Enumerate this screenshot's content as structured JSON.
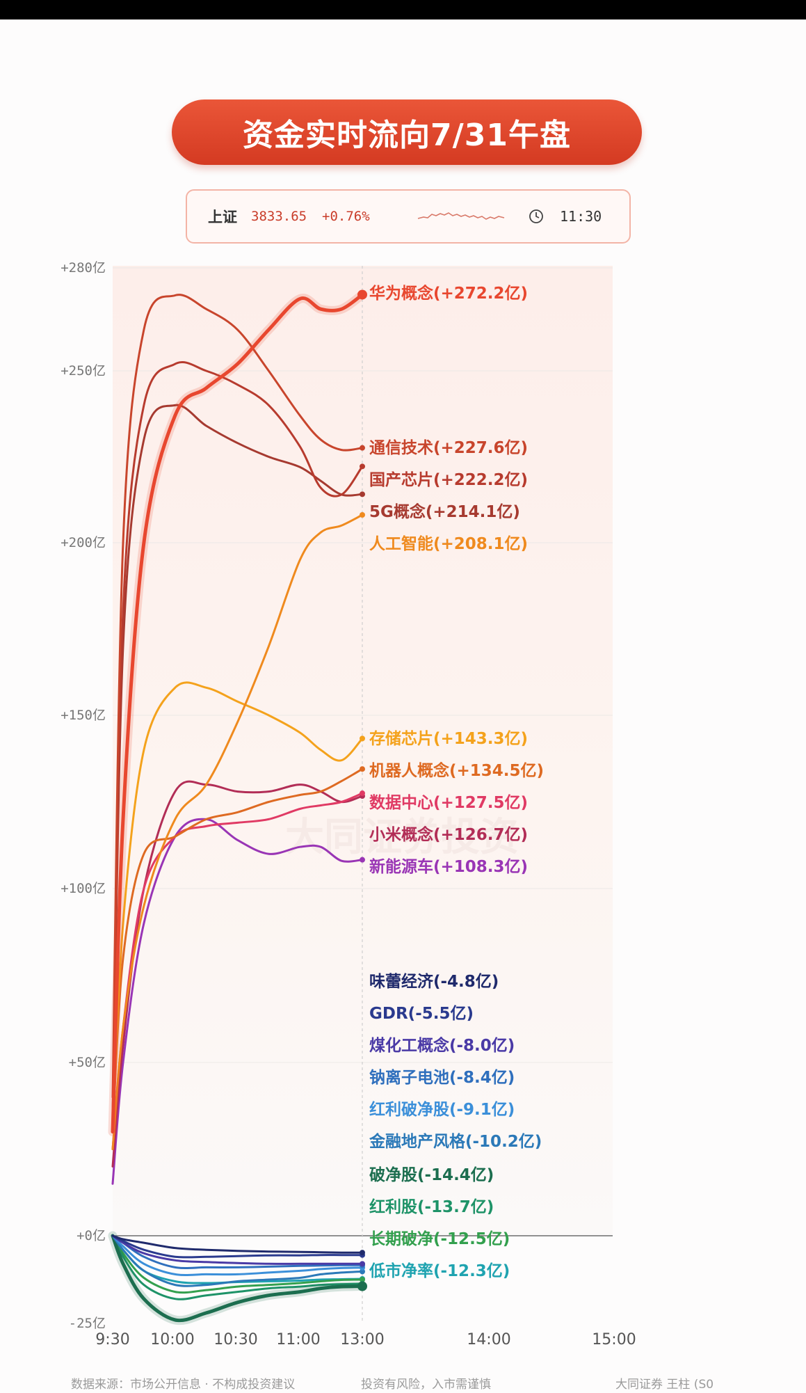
{
  "title": "资金实时流向7/31午盘",
  "index_bar": {
    "name": "上证",
    "value": "3833.65",
    "change": "+0.76%",
    "time": "11:30",
    "icons": [
      "sparkline-icon",
      "clock-icon"
    ]
  },
  "footer": {
    "source": "数据来源：市场公开信息 · 不构成投资建议",
    "risk": "投资有风险，入市需谨慎",
    "credit": "大同证券 王柱 (S0"
  },
  "chart_data": {
    "type": "line",
    "title": "资金实时流向7/31午盘",
    "xlabel": "",
    "ylabel": "",
    "y_ticks": [
      {
        "value": 280,
        "label": "+280亿"
      },
      {
        "value": 250,
        "label": "+250亿"
      },
      {
        "value": 200,
        "label": "+200亿"
      },
      {
        "value": 150,
        "label": "+150亿"
      },
      {
        "value": 100,
        "label": "+100亿"
      },
      {
        "value": 50,
        "label": "+50亿"
      },
      {
        "value": 0,
        "label": "+0亿"
      },
      {
        "value": -25,
        "label": "-25亿"
      }
    ],
    "x_ticks": [
      "9:30",
      "10:00",
      "10:30",
      "11:00",
      "13:00",
      "14:00",
      "15:00"
    ],
    "ylim": [
      -25,
      280
    ],
    "grid": true,
    "x": [
      "9:30",
      "9:35",
      "9:45",
      "10:00",
      "10:15",
      "10:30",
      "10:45",
      "11:00",
      "11:10",
      "11:20",
      "11:30"
    ],
    "series": [
      {
        "name": "华为概念",
        "label": "华为概念(+272.2亿)",
        "color": "#e8472f",
        "width": 5,
        "values": [
          30,
          120,
          200,
          237,
          245,
          252,
          262,
          271,
          268,
          268,
          272.2
        ]
      },
      {
        "name": "通信技术",
        "label": "通信技术(+227.6亿)",
        "color": "#c8452c",
        "width": 3,
        "values": [
          40,
          200,
          262,
          272,
          268,
          262,
          250,
          237,
          230,
          227,
          227.6
        ]
      },
      {
        "name": "国产芯片",
        "label": "国产芯片(+222.2亿)",
        "color": "#b73b2e",
        "width": 3,
        "values": [
          35,
          180,
          240,
          252,
          250,
          246,
          240,
          228,
          216,
          214,
          222.2
        ]
      },
      {
        "name": "5G概念",
        "label": "5G概念(+214.1亿)",
        "color": "#a63a30",
        "width": 3,
        "values": [
          30,
          170,
          230,
          240,
          234,
          229,
          225,
          222,
          218,
          214,
          214.1
        ]
      },
      {
        "name": "人工智能",
        "label": "人工智能(+208.1亿)",
        "color": "#ef8a1e",
        "width": 3,
        "values": [
          25,
          60,
          95,
          120,
          130,
          148,
          170,
          195,
          203,
          205,
          208.1
        ]
      },
      {
        "name": "存储芯片",
        "label": "存储芯片(+143.3亿)",
        "color": "#f4a21c",
        "width": 3,
        "values": [
          30,
          90,
          140,
          158,
          158,
          154,
          150,
          145,
          140,
          137,
          143.3
        ]
      },
      {
        "name": "机器人概念",
        "label": "机器人概念(+134.5亿)",
        "color": "#de6a22",
        "width": 3,
        "values": [
          30,
          80,
          110,
          115,
          120,
          122,
          125,
          127,
          128,
          131,
          134.5
        ]
      },
      {
        "name": "数据中心",
        "label": "数据中心(+127.5亿)",
        "color": "#e03a64",
        "width": 3,
        "values": [
          25,
          60,
          100,
          115,
          118,
          119,
          120,
          123,
          124,
          125,
          127.5
        ]
      },
      {
        "name": "小米概念",
        "label": "小米概念(+126.7亿)",
        "color": "#b22d56",
        "width": 3,
        "values": [
          20,
          55,
          100,
          128,
          130,
          128,
          128,
          130,
          128,
          125,
          126.7
        ]
      },
      {
        "name": "新能源车",
        "label": "新能源车(+108.3亿)",
        "color": "#9935b5",
        "width": 3,
        "values": [
          15,
          50,
          90,
          115,
          120,
          114,
          110,
          112,
          112,
          108,
          108.3
        ]
      },
      {
        "name": "味蕾经济",
        "label": "味蕾经济(-4.8亿)",
        "color": "#1f2a6c",
        "width": 3,
        "values": [
          0,
          -1,
          -2,
          -3.5,
          -4,
          -4.3,
          -4.5,
          -4.6,
          -4.7,
          -4.8,
          -4.8
        ]
      },
      {
        "name": "GDR",
        "label": "GDR(-5.5亿)",
        "color": "#2a3a8e",
        "width": 3,
        "values": [
          0,
          -1.5,
          -4,
          -6,
          -6,
          -5.8,
          -5.6,
          -5.6,
          -5.5,
          -5.5,
          -5.5
        ]
      },
      {
        "name": "煤化工概念",
        "label": "煤化工概念(-8.0亿)",
        "color": "#4a3aa6",
        "width": 3,
        "values": [
          0,
          -2,
          -5,
          -7,
          -7.5,
          -7.8,
          -8,
          -8,
          -8,
          -8,
          -8.0
        ]
      },
      {
        "name": "钠离子电池",
        "label": "钠离子电池(-8.4亿)",
        "color": "#2f6fbd",
        "width": 3,
        "values": [
          0,
          -2,
          -6,
          -9,
          -9,
          -9,
          -8.8,
          -8.6,
          -8.5,
          -8.4,
          -8.4
        ]
      },
      {
        "name": "红利破净股",
        "label": "红利破净股(-9.1亿)",
        "color": "#3b8fd9",
        "width": 3,
        "values": [
          0,
          -3,
          -8,
          -11,
          -11,
          -11,
          -10.5,
          -10,
          -9.5,
          -9.2,
          -9.1
        ]
      },
      {
        "name": "金融地产风格",
        "label": "金融地产风格(-10.2亿)",
        "color": "#2b79b8",
        "width": 3,
        "values": [
          0,
          -4,
          -10,
          -14,
          -14,
          -13,
          -12.5,
          -12,
          -11,
          -10.5,
          -10.2
        ]
      },
      {
        "name": "破净股",
        "label": "破净股(-14.4亿)",
        "color": "#1c6e4f",
        "width": 5,
        "values": [
          0,
          -8,
          -18,
          -24,
          -22,
          -19,
          -17,
          -16,
          -15,
          -14.5,
          -14.4
        ]
      },
      {
        "name": "红利股",
        "label": "红利股(-13.7亿)",
        "color": "#1e9368",
        "width": 3,
        "values": [
          0,
          -6,
          -14,
          -18,
          -17,
          -16,
          -15,
          -14.5,
          -14,
          -13.8,
          -13.7
        ]
      },
      {
        "name": "长期破净",
        "label": "长期破净(-12.5亿)",
        "color": "#33a04e",
        "width": 3,
        "values": [
          0,
          -5,
          -12,
          -16,
          -15.5,
          -14.5,
          -14,
          -13.5,
          -13,
          -12.6,
          -12.5
        ]
      },
      {
        "name": "低市净率",
        "label": "低市净率(-12.3亿)",
        "color": "#1fa3b0",
        "width": 3,
        "values": [
          0,
          -4,
          -10,
          -13,
          -13.5,
          -13.2,
          -13,
          -12.8,
          -12.5,
          -12.4,
          -12.3
        ]
      }
    ],
    "watermark": "大同证券投资"
  }
}
